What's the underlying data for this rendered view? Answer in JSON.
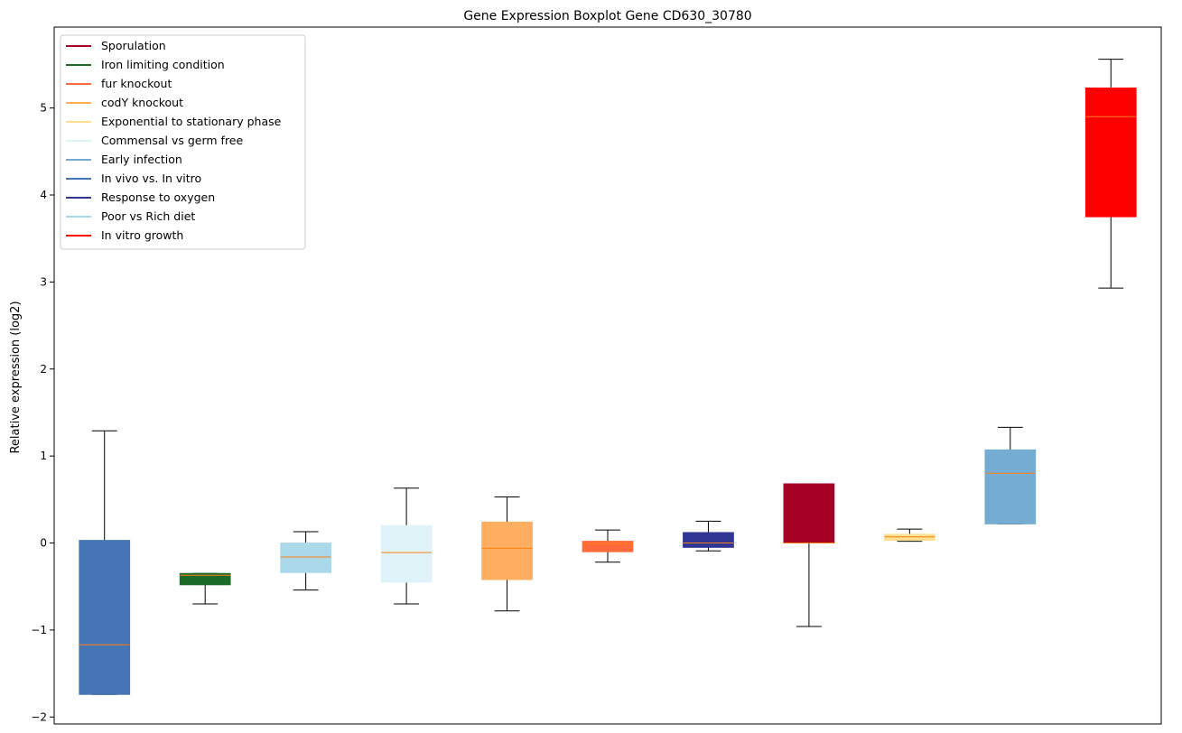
{
  "chart_data": {
    "type": "boxplot",
    "title": "Gene Expression Boxplot Gene CD630_30780",
    "xlabel": "",
    "ylabel": "Relative expression (log2)",
    "ylim": [
      -2.08,
      5.93
    ],
    "yticks": [
      -2,
      -1,
      0,
      1,
      2,
      3,
      4,
      5
    ],
    "ytick_labels": [
      "−2",
      "−1",
      "0",
      "1",
      "2",
      "3",
      "4",
      "5"
    ],
    "median_color": "#ff7f0e",
    "legend_position": "upper-left",
    "boxes": [
      {
        "name": "In vivo vs. In vitro",
        "color": "#4575b4",
        "whislo": -1.74,
        "q1": -1.74,
        "med": -1.17,
        "q3": 0.03,
        "whishi": 1.29
      },
      {
        "name": "Iron limiting condition",
        "color": "#1a6b2a",
        "whislo": -0.7,
        "q1": -0.48,
        "med": -0.37,
        "q3": -0.35,
        "whishi": -0.35
      },
      {
        "name": "Poor vs Rich diet",
        "color": "#abd9e9",
        "whislo": -0.54,
        "q1": -0.34,
        "med": -0.16,
        "q3": 0.0,
        "whishi": 0.13
      },
      {
        "name": "Commensal vs germ free",
        "color": "#e0f3f8",
        "whislo": -0.7,
        "q1": -0.45,
        "med": -0.11,
        "q3": 0.2,
        "whishi": 0.63
      },
      {
        "name": "codY knockout",
        "color": "#fdae61",
        "whislo": -0.78,
        "q1": -0.42,
        "med": -0.06,
        "q3": 0.24,
        "whishi": 0.53
      },
      {
        "name": "fur knockout",
        "color": "#ff6a3d",
        "whislo": -0.22,
        "q1": -0.1,
        "med": -0.01,
        "q3": 0.02,
        "whishi": 0.15
      },
      {
        "name": "Response to oxygen",
        "color": "#313695",
        "whislo": -0.09,
        "q1": -0.05,
        "med": 0.0,
        "q3": 0.12,
        "whishi": 0.25
      },
      {
        "name": "Sporulation",
        "color": "#a50026",
        "whislo": -0.96,
        "q1": 0.0,
        "med": 0.0,
        "q3": 0.68,
        "whishi": 0.68
      },
      {
        "name": "Exponential to stationary phase",
        "color": "#fee090",
        "whislo": 0.02,
        "q1": 0.03,
        "med": 0.07,
        "q3": 0.1,
        "whishi": 0.16
      },
      {
        "name": "Early infection",
        "color": "#74add1",
        "whislo": 0.22,
        "q1": 0.22,
        "med": 0.8,
        "q3": 1.07,
        "whishi": 1.33
      },
      {
        "name": "In vitro growth",
        "color": "#ff0000",
        "whislo": 2.93,
        "q1": 3.75,
        "med": 4.9,
        "q3": 5.23,
        "whishi": 5.56
      }
    ],
    "legend": [
      {
        "label": "Sporulation",
        "color": "#a50026"
      },
      {
        "label": "Iron limiting condition",
        "color": "#1a6b2a"
      },
      {
        "label": "fur knockout",
        "color": "#ff6a3d"
      },
      {
        "label": "codY knockout",
        "color": "#fdae61"
      },
      {
        "label": "Exponential to stationary phase",
        "color": "#fee090"
      },
      {
        "label": "Commensal vs germ free",
        "color": "#e0f3f8"
      },
      {
        "label": "Early infection",
        "color": "#74add1"
      },
      {
        "label": "In vivo vs. In vitro",
        "color": "#4575b4"
      },
      {
        "label": "Response to oxygen",
        "color": "#313695"
      },
      {
        "label": "Poor vs Rich diet",
        "color": "#abd9e9"
      },
      {
        "label": "In vitro growth",
        "color": "#ff0000"
      }
    ]
  }
}
